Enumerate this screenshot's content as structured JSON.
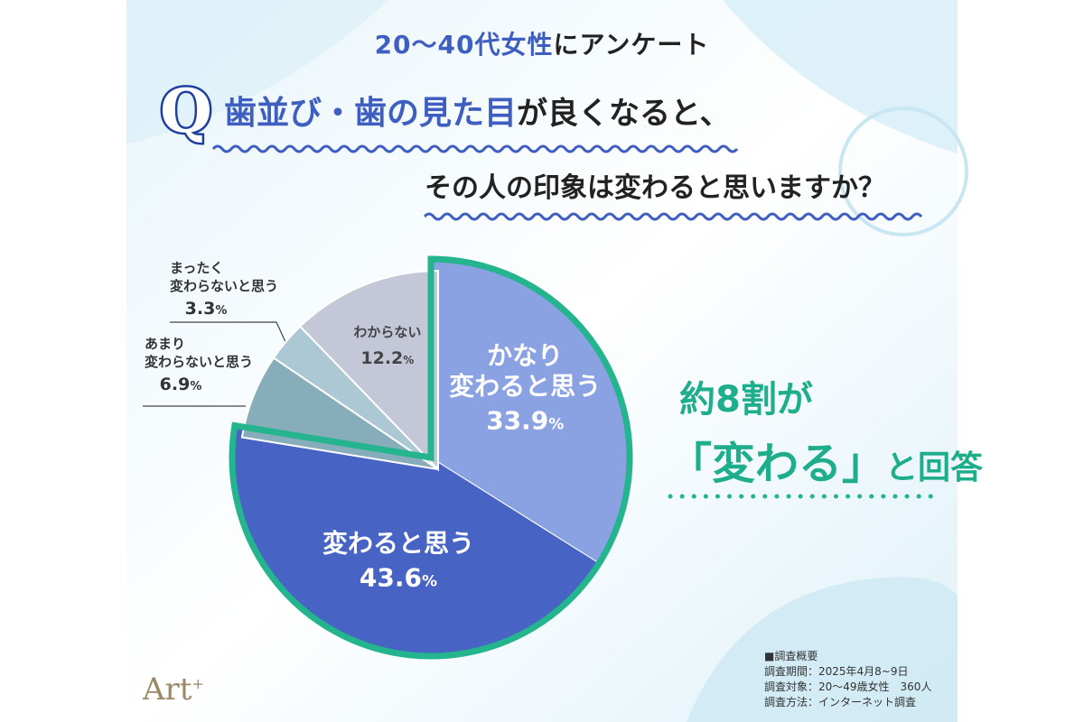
{
  "header": {
    "title_accent": "20〜40代女性",
    "title_rest": "にアンケート",
    "q_mark": "Q",
    "question_accent": "歯並び・歯の見た目",
    "question_rest1": "が良くなると、",
    "question_line2": "その人の印象は変わると思いますか？"
  },
  "callout": {
    "line1": "約8割が",
    "line2_main": "「変わる」",
    "line2_small": "と回答"
  },
  "chart_data": {
    "type": "pie",
    "start": "top, clockwise",
    "slices": [
      {
        "label_lines": [
          "かなり",
          "変わると思う"
        ],
        "pct_text": "33.9",
        "value": 33.9,
        "color": "#8aa1e2",
        "label_placement": "inside"
      },
      {
        "label_lines": [
          "変わると思う"
        ],
        "pct_text": "43.6",
        "value": 43.6,
        "color": "#4763c4",
        "label_placement": "inside"
      },
      {
        "label_lines": [
          "あまり",
          "変わらないと思う"
        ],
        "pct_text": "6.9",
        "value": 6.9,
        "color": "#87adba",
        "label_placement": "outside"
      },
      {
        "label_lines": [
          "まったく",
          "変わらないと思う"
        ],
        "pct_text": "3.3",
        "value": 3.3,
        "color": "#acc8d4",
        "label_placement": "outside"
      },
      {
        "label_lines": [
          "わからない"
        ],
        "pct_text": "12.2",
        "value": 12.2,
        "color": "#c3c7d7",
        "label_placement": "inside"
      }
    ],
    "highlight_color": "#24b48e",
    "unit": "%"
  },
  "survey": {
    "heading": "■調査概要",
    "period": "調査期間：2025年4月8~9日",
    "target": "調査対象：20〜49歳女性　360人",
    "method": "調査方法：インターネット調査"
  },
  "logo": {
    "text": "Art",
    "sup": "+"
  }
}
